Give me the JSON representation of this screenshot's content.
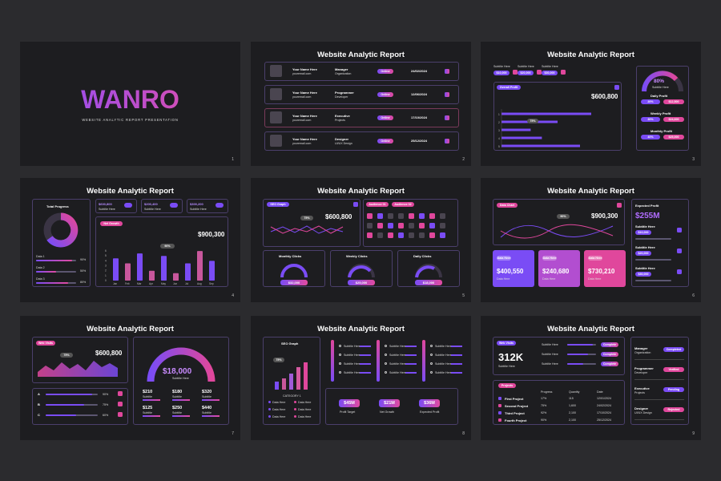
{
  "colors": {
    "purple": "#7a4cf5",
    "pink": "#e0479c",
    "bg": "#1d1d20"
  },
  "title": "Website Analytic Report",
  "cover": {
    "brand": "WANRO",
    "subtitle": "WEBSITE ANALYTIC REPORT PRESENTATION",
    "num": "1"
  },
  "s2": {
    "num": "2",
    "rows": [
      {
        "name": "Your Name Here",
        "email": "youremail.com",
        "role": "Manager",
        "dept": "Organization",
        "status": "Online",
        "date": "24/02/2024"
      },
      {
        "name": "Your Name Here",
        "email": "youremail.com",
        "role": "Programmer",
        "dept": "Developer",
        "status": "Online",
        "date": "12/06/2024"
      },
      {
        "name": "Your Name Here",
        "email": "youremail.com",
        "role": "Executive",
        "dept": "Projects",
        "status": "Online",
        "date": "17/10/2024"
      },
      {
        "name": "Your Name Here",
        "email": "youremail.com",
        "role": "Designer",
        "dept": "UI/UX Design",
        "status": "Online",
        "date": "25/12/2024"
      }
    ]
  },
  "s3": {
    "num": "3",
    "subs": [
      {
        "label": "Subtitle Here",
        "value": "$10,000"
      },
      {
        "label": "Subtitle Here",
        "value": "$20,000"
      },
      {
        "label": "Subtitle Here",
        "value": "$30,000"
      }
    ],
    "overall": "Overall Profit",
    "amount": "$600,800",
    "tooltip": "75%",
    "gauge": "80%",
    "gauge_sub": "Subtitle Here",
    "profits": [
      {
        "label": "Daily Profit",
        "pct": "20%",
        "val": "$12,500"
      },
      {
        "label": "Weekly Profit",
        "pct": "30%",
        "val": "$24,600"
      },
      {
        "label": "Monthly Profit",
        "pct": "40%",
        "val": "$25,000"
      }
    ]
  },
  "s4": {
    "num": "4",
    "total": "Total Progress",
    "rates": [
      {
        "label": "Data 1",
        "pct": "90%"
      },
      {
        "label": "Data 2",
        "pct": "50%"
      },
      {
        "label": "Data 3",
        "pct": "80%"
      }
    ],
    "subs": [
      {
        "value": "$600,800",
        "label": "Subtitle Here"
      },
      {
        "value": "$200,400",
        "label": "Subtitle Here"
      },
      {
        "value": "$300,200",
        "label": "Subtitle Here"
      }
    ],
    "growth": "Net Growth",
    "amount": "$900,300",
    "tooltip": "90%"
  },
  "s5": {
    "num": "5",
    "seo": "SEO Graph",
    "tooltip": "75%",
    "amount": "$600,800",
    "aud1": "Audience 01",
    "aud2": "Audience 02",
    "gauges": [
      {
        "title": "Monthly Clicks",
        "value": "$32,000"
      },
      {
        "title": "Weekly Clicks",
        "value": "$25,000"
      },
      {
        "title": "Daily Clicks",
        "value": "$18,000"
      }
    ]
  },
  "s6": {
    "num": "6",
    "chart": "Data Chart",
    "tooltip": "90%",
    "amount": "$900,300",
    "expected": "Expected Profit",
    "expected_val": "$255M",
    "cards": [
      {
        "tag": "Data Here",
        "value": "$400,550",
        "sub": "Data Here"
      },
      {
        "tag": "Data Here",
        "value": "$240,680",
        "sub": "Data Here"
      },
      {
        "tag": "Data Here",
        "value": "$730,210",
        "sub": "Data Here"
      }
    ],
    "subs": [
      {
        "label": "Subtitle Here",
        "value": "$10,000"
      },
      {
        "label": "Subtitle Here",
        "value": "$20,000"
      },
      {
        "label": "Subtitle Here",
        "value": "$30,000"
      }
    ]
  },
  "s7": {
    "num": "7",
    "visits": "Web Visits",
    "tooltip": "75%",
    "amount": "$600,800",
    "sliders": [
      {
        "label": "A",
        "pct": "90%"
      },
      {
        "label": "B",
        "pct": "75%"
      },
      {
        "label": "C",
        "pct": "60%"
      }
    ],
    "gauge_val": "$18,000",
    "gauge_sub": "Subtitle Here",
    "grid": [
      {
        "v": "$210",
        "s": "Subtitle"
      },
      {
        "v": "$180",
        "s": "Subtitle"
      },
      {
        "v": "$320",
        "s": "Subtitle"
      },
      {
        "v": "$125",
        "s": "Subtitle"
      },
      {
        "v": "$250",
        "s": "Subtitle"
      },
      {
        "v": "$440",
        "s": "Subtitle"
      }
    ]
  },
  "s8": {
    "num": "8",
    "seo": "SEO Graph",
    "tooltip": "75%",
    "category": "CATEGORY 1",
    "legend": [
      "Data Here",
      "Data Here",
      "Data Here",
      "Data Here",
      "Data Here",
      "Data Here"
    ],
    "sub": "Subtitle Here",
    "totals": [
      {
        "v": "$45M",
        "l": "Profit Target"
      },
      {
        "v": "$21M",
        "l": "Net Growth"
      },
      {
        "v": "$36M",
        "l": "Expected Profit"
      }
    ]
  },
  "s9": {
    "num": "9",
    "visits": "Web Visits",
    "big": "312K",
    "big_sub": "Subtitle Here",
    "progress": [
      {
        "label": "Subtitle Here",
        "status": "Complete"
      },
      {
        "label": "Subtitle Here",
        "status": "Complete"
      },
      {
        "label": "Subtitle Here",
        "status": "Complete"
      }
    ],
    "projects": "Projects",
    "headers": [
      "Progress",
      "Quantity",
      "Date"
    ],
    "rows": [
      {
        "name": "First Project",
        "p": "17%",
        "q": "115",
        "d": "12/01/2024"
      },
      {
        "name": "Second Project",
        "p": "75%",
        "q": "1,600",
        "d": "24/02/2024"
      },
      {
        "name": "Third Project",
        "p": "92%",
        "q": "2,100",
        "d": "17/10/2024"
      },
      {
        "name": "Fourth Project",
        "p": "90%",
        "q": "2,100",
        "d": "25/12/2024"
      }
    ],
    "roles": [
      {
        "role": "Manager",
        "dept": "Organization",
        "status": "Completed"
      },
      {
        "role": "Programmer",
        "dept": "Developer",
        "status": "Verified"
      },
      {
        "role": "Executive",
        "dept": "Projects",
        "status": "Pending"
      },
      {
        "role": "Designer",
        "dept": "UI/UX Design",
        "status": "Rejected"
      }
    ]
  },
  "chart_data": [
    {
      "type": "bar",
      "title": "Net Growth",
      "categories": [
        "Jan",
        "Feb",
        "Mar",
        "Apr",
        "May",
        "Jun",
        "Jul",
        "Aug",
        "Sep"
      ],
      "values": [
        4.5,
        3.5,
        5.5,
        2,
        5,
        1.5,
        3.5,
        6,
        4
      ],
      "ylim": [
        0,
        6.5
      ]
    },
    {
      "type": "bar",
      "title": "Overall Profit",
      "categories": [
        "5",
        "4",
        "3",
        "2",
        "1"
      ],
      "values": [
        70,
        36,
        26,
        50,
        80
      ]
    }
  ]
}
